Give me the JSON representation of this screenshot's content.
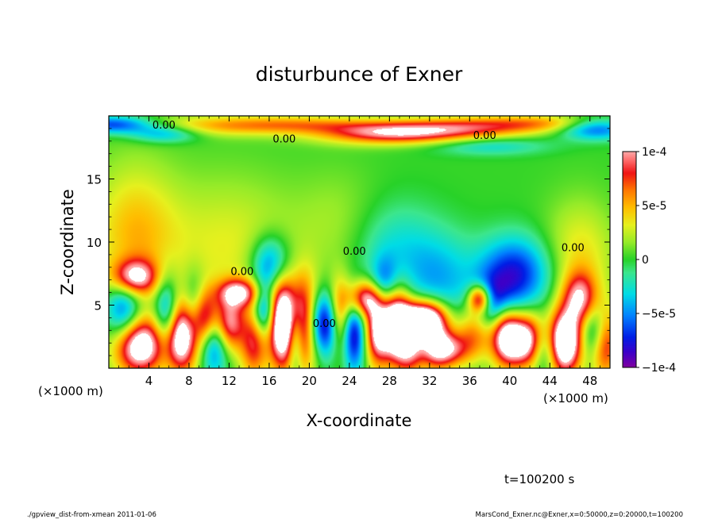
{
  "chart_data": {
    "type": "heatmap",
    "title": "disturbunce of Exner",
    "xlabel": "X-coordinate",
    "ylabel": "Z-coordinate",
    "x_unit_left": "(×1000 m)",
    "x_unit_right": "(×1000 m)",
    "xlim": [
      0,
      50
    ],
    "ylim": [
      0,
      20
    ],
    "x_ticks": [
      4,
      8,
      12,
      16,
      20,
      24,
      28,
      32,
      36,
      40,
      44,
      48
    ],
    "y_ticks": [
      5,
      10,
      15
    ],
    "colorbar": {
      "range": [
        -0.0001,
        0.0001
      ],
      "tick_labels": [
        "1e-4",
        "5e-5",
        "0",
        "−5e-5",
        "−1e-4"
      ],
      "tick_values": [
        0.0001,
        5e-05,
        0,
        -5e-05,
        -0.0001
      ]
    },
    "contour_labels": [
      {
        "text": "0.00",
        "x": 5.5,
        "z": 19.3
      },
      {
        "text": "0.00",
        "x": 17.5,
        "z": 18.2
      },
      {
        "text": "0.00",
        "x": 37.5,
        "z": 18.5
      },
      {
        "text": "0.00",
        "x": 13.3,
        "z": 7.7
      },
      {
        "text": "0.00",
        "x": 24.5,
        "z": 9.3
      },
      {
        "text": "0.00",
        "x": 46.3,
        "z": 9.6
      },
      {
        "text": "0.00",
        "x": 21.5,
        "z": 3.6
      }
    ],
    "anomalies": [
      {
        "x": 0.5,
        "z": 19.3,
        "sx": 3.0,
        "sz": 0.5,
        "v": -7.5e-05
      },
      {
        "x": 10.0,
        "z": 19.2,
        "sx": 6.0,
        "sz": 0.6,
        "v": 3.5e-05
      },
      {
        "x": 19.0,
        "z": 19.3,
        "sx": 6.0,
        "sz": 0.5,
        "v": 4.5e-05
      },
      {
        "x": 28.0,
        "z": 18.6,
        "sx": 5.0,
        "sz": 0.6,
        "v": 8.5e-05
      },
      {
        "x": 35.0,
        "z": 19.0,
        "sx": 5.0,
        "sz": 0.6,
        "v": 6e-05
      },
      {
        "x": 43.0,
        "z": 19.4,
        "sx": 5.0,
        "sz": 0.5,
        "v": 5e-05
      },
      {
        "x": 48.5,
        "z": 19.0,
        "sx": 2.5,
        "sz": 0.6,
        "v": -7e-05
      },
      {
        "x": 5.5,
        "z": 18.6,
        "sx": 2.5,
        "sz": 0.5,
        "v": -5e-05
      },
      {
        "x": 38.0,
        "z": 17.6,
        "sx": 4.0,
        "sz": 0.5,
        "v": -3e-05
      },
      {
        "x": 2.5,
        "z": 10.5,
        "sx": 3.0,
        "sz": 4.0,
        "v": 4.5e-05
      },
      {
        "x": 12.0,
        "z": 9.5,
        "sx": 5.0,
        "sz": 4.0,
        "v": 3e-05
      },
      {
        "x": 16.2,
        "z": 8.2,
        "sx": 1.4,
        "sz": 1.6,
        "v": -7e-05
      },
      {
        "x": 23.0,
        "z": 11.5,
        "sx": 3.0,
        "sz": 3.0,
        "v": 1.5e-05
      },
      {
        "x": 28.5,
        "z": 9.5,
        "sx": 3.0,
        "sz": 2.5,
        "v": -3e-05
      },
      {
        "x": 33.0,
        "z": 7.0,
        "sx": 2.5,
        "sz": 2.5,
        "v": -4e-05
      },
      {
        "x": 40.5,
        "z": 7.5,
        "sx": 2.5,
        "sz": 2.0,
        "v": -8e-05
      },
      {
        "x": 47.0,
        "z": 9.0,
        "sx": 2.5,
        "sz": 3.0,
        "v": 3.5e-05
      },
      {
        "x": 2.5,
        "z": 7.2,
        "sx": 1.6,
        "sz": 1.0,
        "v": 0.0001
      },
      {
        "x": 1.5,
        "z": 4.5,
        "sx": 1.3,
        "sz": 2.0,
        "v": -8e-05
      },
      {
        "x": 3.0,
        "z": 1.8,
        "sx": 1.8,
        "sz": 1.6,
        "v": 0.00014
      },
      {
        "x": 5.8,
        "z": 4.0,
        "sx": 0.9,
        "sz": 2.2,
        "v": -9e-05
      },
      {
        "x": 7.2,
        "z": 2.5,
        "sx": 1.3,
        "sz": 2.0,
        "v": 0.00014
      },
      {
        "x": 8.5,
        "z": 4.5,
        "sx": 0.8,
        "sz": 2.0,
        "v": -6e-05
      },
      {
        "x": 9.5,
        "z": 4.0,
        "sx": 1.0,
        "sz": 1.5,
        "v": 9e-05
      },
      {
        "x": 10.5,
        "z": 2.0,
        "sx": 1.0,
        "sz": 1.8,
        "v": -7e-05
      },
      {
        "x": 12.0,
        "z": 3.5,
        "sx": 1.0,
        "sz": 1.5,
        "v": 9e-05
      },
      {
        "x": 13.0,
        "z": 6.0,
        "sx": 1.5,
        "sz": 0.8,
        "v": 9e-05
      },
      {
        "x": 14.5,
        "z": 2.0,
        "sx": 1.0,
        "sz": 2.0,
        "v": 8e-05
      },
      {
        "x": 15.5,
        "z": 4.5,
        "sx": 0.8,
        "sz": 1.5,
        "v": -8e-05
      },
      {
        "x": 17.2,
        "z": 3.5,
        "sx": 0.9,
        "sz": 2.5,
        "v": 0.00013
      },
      {
        "x": 18.6,
        "z": 2.5,
        "sx": 0.6,
        "sz": 2.0,
        "v": -8e-05
      },
      {
        "x": 19.3,
        "z": 3.5,
        "sx": 1.2,
        "sz": 2.5,
        "v": 0.00014
      },
      {
        "x": 21.5,
        "z": 3.5,
        "sx": 1.5,
        "sz": 1.8,
        "v": -0.00012
      },
      {
        "x": 23.0,
        "z": 4.0,
        "sx": 0.8,
        "sz": 2.0,
        "v": 0.0001
      },
      {
        "x": 24.5,
        "z": 2.5,
        "sx": 0.8,
        "sz": 2.0,
        "v": -8e-05
      },
      {
        "x": 25.5,
        "z": 5.5,
        "sx": 1.2,
        "sz": 1.0,
        "v": 0.0001
      },
      {
        "x": 26.8,
        "z": 3.0,
        "sx": 0.9,
        "sz": 2.0,
        "v": 0.00011
      },
      {
        "x": 27.5,
        "z": 6.5,
        "sx": 1.0,
        "sz": 1.5,
        "v": -6e-05
      },
      {
        "x": 28.6,
        "z": 3.5,
        "sx": 1.0,
        "sz": 2.0,
        "v": 0.00014
      },
      {
        "x": 30.0,
        "z": 2.0,
        "sx": 1.0,
        "sz": 1.8,
        "v": 9e-05
      },
      {
        "x": 31.5,
        "z": 4.0,
        "sx": 1.5,
        "sz": 1.0,
        "v": 0.00014
      },
      {
        "x": 32.5,
        "z": 2.0,
        "sx": 1.2,
        "sz": 1.5,
        "v": 8e-05
      },
      {
        "x": 34.0,
        "z": 1.5,
        "sx": 1.5,
        "sz": 1.0,
        "v": 8e-05
      },
      {
        "x": 36.5,
        "z": 3.0,
        "sx": 1.2,
        "sz": 1.5,
        "v": 6e-05
      },
      {
        "x": 37.0,
        "z": 5.5,
        "sx": 0.8,
        "sz": 0.8,
        "v": 0.00012
      },
      {
        "x": 38.5,
        "z": 5.0,
        "sx": 1.5,
        "sz": 1.5,
        "v": -7e-05
      },
      {
        "x": 39.5,
        "z": 3.0,
        "sx": 1.0,
        "sz": 1.8,
        "v": 8e-05
      },
      {
        "x": 41.5,
        "z": 2.2,
        "sx": 1.8,
        "sz": 1.5,
        "v": 0.00014
      },
      {
        "x": 43.5,
        "z": 1.8,
        "sx": 1.0,
        "sz": 1.5,
        "v": -8e-05
      },
      {
        "x": 45.5,
        "z": 2.0,
        "sx": 1.2,
        "sz": 1.8,
        "v": 0.00015
      },
      {
        "x": 47.0,
        "z": 5.5,
        "sx": 1.2,
        "sz": 1.5,
        "v": 9e-05
      },
      {
        "x": 48.5,
        "z": 3.0,
        "sx": 1.0,
        "sz": 1.5,
        "v": -6e-05
      },
      {
        "x": 49.5,
        "z": 2.0,
        "sx": 1.0,
        "sz": 2.0,
        "v": 9e-05
      }
    ]
  },
  "footer": {
    "time_label": "t=100200 s",
    "left_note": "./gpview_dist-from-xmean  2011-01-06",
    "right_note": "MarsCond_Exner.nc@Exner,x=0:50000,z=0:20000,t=100200"
  }
}
